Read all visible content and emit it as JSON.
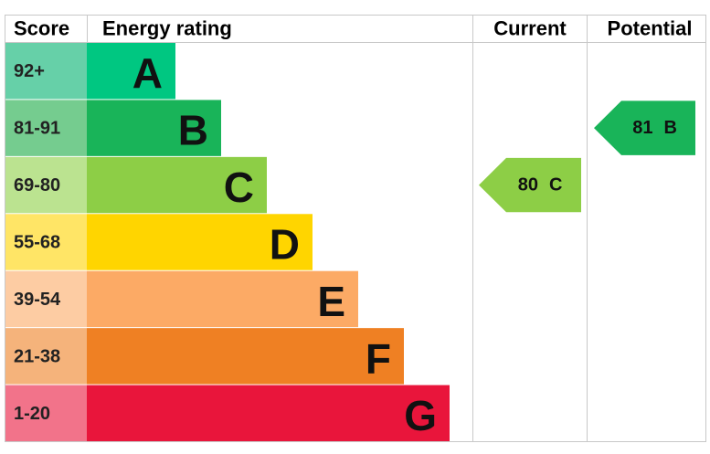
{
  "header": {
    "score": "Score",
    "rating": "Energy rating",
    "current": "Current",
    "potential": "Potential"
  },
  "bands": [
    {
      "score": "92+",
      "letter": "A",
      "color": "#00c781",
      "score_color": "#66d0a8"
    },
    {
      "score": "81-91",
      "letter": "B",
      "color": "#19b459",
      "score_color": "#75cc8f"
    },
    {
      "score": "69-80",
      "letter": "C",
      "color": "#8dce46",
      "score_color": "#bbe390"
    },
    {
      "score": "55-68",
      "letter": "D",
      "color": "#ffd500",
      "score_color": "#ffe566"
    },
    {
      "score": "39-54",
      "letter": "E",
      "color": "#fcaa65",
      "score_color": "#fdcca3"
    },
    {
      "score": "21-38",
      "letter": "F",
      "color": "#ef8023",
      "score_color": "#f5b37b"
    },
    {
      "score": "1-20",
      "letter": "G",
      "color": "#e9153b",
      "score_color": "#f2738a"
    }
  ],
  "current": {
    "value": 80,
    "letter": "C"
  },
  "potential": {
    "value": 81,
    "letter": "B"
  }
}
